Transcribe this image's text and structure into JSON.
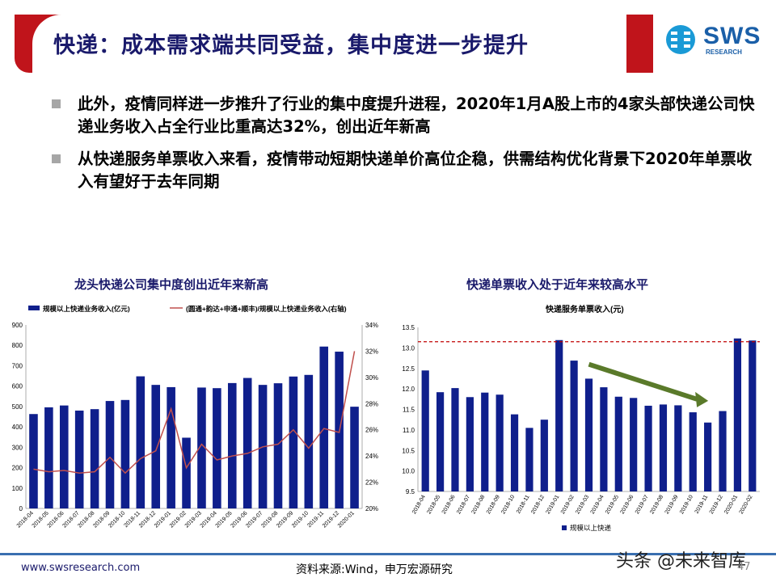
{
  "header": {
    "title": "快递：成本需求端共同受益，集中度进一步提升",
    "logo_text": "SWS",
    "logo_sub": "RESEARCH"
  },
  "bullets": [
    "此外，疫情同样进一步推升了行业的集中度提升进程，2020年1月A股上市的4家头部快递公司快递业务收入占全行业比重高达32%，创出近年新高",
    "从快递服务单票收入来看，疫情带动短期快递单价高位企稳，供需结构优化背景下2020年单票收入有望好于去年同期"
  ],
  "chart_data": [
    {
      "type": "bar",
      "title": "龙头快递公司集中度创出近年来新高",
      "categories": [
        "2018-04",
        "2018-05",
        "2018-06",
        "2018-07",
        "2018-08",
        "2018-09",
        "2018-10",
        "2018-11",
        "2018-12",
        "2019-01",
        "2019-02",
        "2019-03",
        "2019-04",
        "2019-05",
        "2019-06",
        "2019-07",
        "2019-08",
        "2019-09",
        "2019-10",
        "2019-11",
        "2019-12",
        "2020-01"
      ],
      "series": [
        {
          "name": "规模以上快递业务收入(亿元)",
          "type": "bar",
          "color": "#0f1f8c",
          "values": [
            463,
            496,
            505,
            480,
            487,
            527,
            532,
            648,
            606,
            595,
            347,
            593,
            590,
            615,
            640,
            606,
            614,
            647,
            655,
            794,
            769,
            499
          ]
        },
        {
          "name": "(圆通+韵达+申通+顺丰)/规模以上快递业务收入(右轴)",
          "type": "line",
          "axis": "right",
          "color": "#c0504d",
          "values": [
            23.0,
            22.8,
            22.9,
            22.7,
            22.8,
            23.9,
            22.7,
            23.8,
            24.4,
            27.6,
            23.1,
            24.9,
            23.7,
            24.0,
            24.2,
            24.7,
            24.9,
            26.0,
            24.6,
            26.1,
            25.8,
            32.0
          ]
        }
      ],
      "ylim": [
        0,
        900
      ],
      "yticks": [
        "0",
        "100",
        "200",
        "300",
        "400",
        "500",
        "600",
        "700",
        "800",
        "900"
      ],
      "y2lim": [
        20,
        34
      ],
      "y2ticks": [
        "20%",
        "22%",
        "24%",
        "26%",
        "28%",
        "30%",
        "32%",
        "34%"
      ],
      "legend": "top"
    },
    {
      "type": "bar",
      "title": "快递单票收入处于近年来较高水平",
      "subtitle": "快递服务单票收入(元)",
      "categories": [
        "2018-04",
        "2018-05",
        "2018-06",
        "2018-07",
        "2018-08",
        "2018-09",
        "2018-10",
        "2018-11",
        "2018-12",
        "2019-01",
        "2019-02",
        "2019-03",
        "2019-04",
        "2019-05",
        "2019-06",
        "2019-07",
        "2019-08",
        "2019-09",
        "2019-10",
        "2019-11",
        "2019-12",
        "2020-01",
        "2020-02"
      ],
      "series": [
        {
          "name": "规模以上快递",
          "color": "#0f1f8c",
          "values": [
            12.45,
            11.92,
            12.02,
            11.8,
            11.91,
            11.86,
            11.38,
            11.05,
            11.25,
            13.19,
            12.69,
            12.25,
            12.04,
            11.81,
            11.78,
            11.59,
            11.62,
            11.6,
            11.43,
            11.18,
            11.46,
            13.23,
            13.18
          ]
        }
      ],
      "ylim": [
        9.5,
        13.5
      ],
      "yticks": [
        "9.5",
        "10.0",
        "10.5",
        "11.0",
        "11.5",
        "12.0",
        "12.5",
        "13.0",
        "13.5"
      ],
      "reference_line": 13.15,
      "legend": "bottom"
    }
  ],
  "footer": {
    "url": "www.swsresearch.com",
    "source": "资料来源:Wind，申万宏源研究",
    "watermark": "头条 @未来智库",
    "page": "47"
  },
  "colors": {
    "brand_red": "#c0141b",
    "navy": "#1a1a6b",
    "bar": "#0f1f8c",
    "line": "#c0504d",
    "arrow": "#5a7a2a"
  }
}
